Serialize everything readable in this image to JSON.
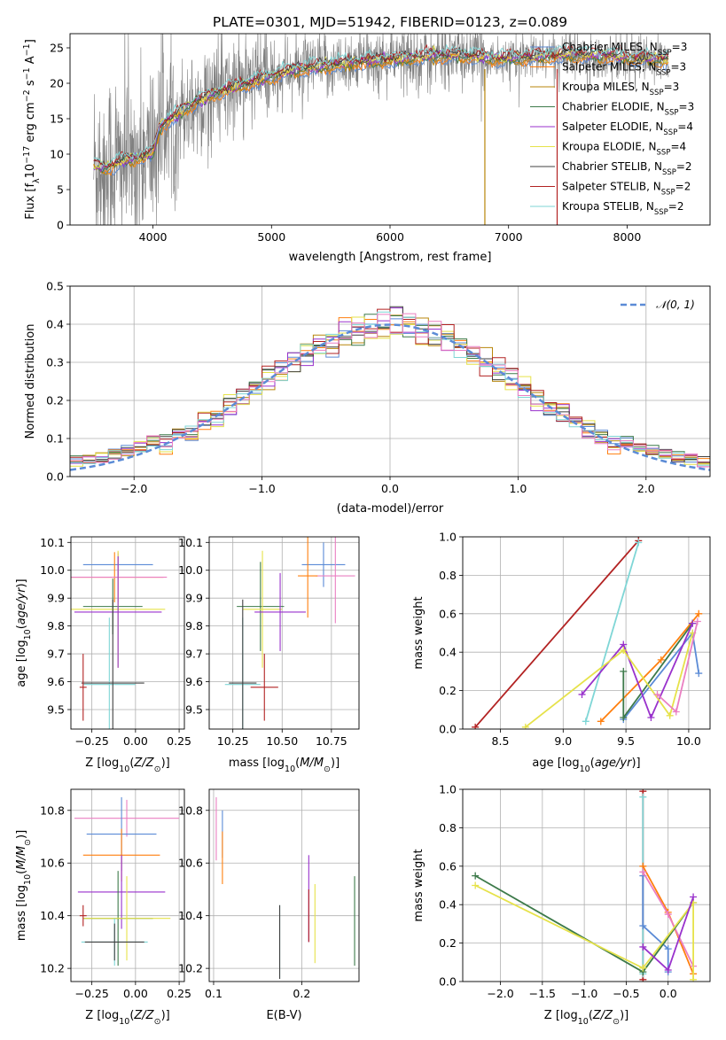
{
  "figure": {
    "title": "PLATE=0301, MJD=51942, FIBERID=0123, z=0.089"
  },
  "colors": {
    "Chabrier MILES": "#5b8bd6",
    "Salpeter MILES": "#ff7f0e",
    "Kroupa MILES": "#b8860b",
    "Chabrier ELODIE": "#3d7a4a",
    "Salpeter ELODIE": "#9932cc",
    "Kroupa ELODIE": "#e6e24a",
    "Chabrier STELIB": "#404040",
    "Salpeter STELIB": "#b22222",
    "Kroupa STELIB": "#7fd6d6",
    "pink": "#ea7fc2",
    "data": "#808080"
  },
  "chart_data": [
    {
      "id": "spectrum",
      "type": "line",
      "xlabel": "wavelength [Angstrom, rest frame]",
      "ylabel": "Flux [f_λ10^-17 erg cm^-2 s^-1 A^-1]",
      "xlim": [
        3300,
        8700
      ],
      "ylim": [
        0,
        27
      ],
      "xticks": [
        4000,
        5000,
        6000,
        7000,
        8000
      ],
      "yticks": [
        0,
        5,
        10,
        15,
        20,
        25
      ],
      "legend_position": "top-right",
      "legend": [
        {
          "name": "Chabrier MILES",
          "nssp": "3"
        },
        {
          "name": "Salpeter MILES",
          "nssp": "3"
        },
        {
          "name": "Kroupa MILES",
          "nssp": "3"
        },
        {
          "name": "Chabrier ELODIE",
          "nssp": "3"
        },
        {
          "name": "Salpeter ELODIE",
          "nssp": "4"
        },
        {
          "name": "Kroupa ELODIE",
          "nssp": "4"
        },
        {
          "name": "Chabrier STELIB",
          "nssp": "2"
        },
        {
          "name": "Salpeter STELIB",
          "nssp": "2"
        },
        {
          "name": "Kroupa STELIB",
          "nssp": "2"
        }
      ],
      "model_envelope": {
        "x": [
          3500,
          3600,
          3700,
          3800,
          3900,
          4000,
          4050,
          4100,
          4200,
          4300,
          4500,
          4700,
          4900,
          5100,
          5300,
          5500,
          5700,
          5900,
          6100,
          6300,
          6500,
          6700,
          6900,
          7100,
          7300,
          7500,
          7700,
          7900,
          8100,
          8300
        ],
        "y": [
          8.5,
          8.0,
          8.8,
          9.2,
          9.5,
          10.2,
          13.5,
          14.5,
          15.5,
          16.8,
          18.5,
          19.5,
          20.5,
          21.5,
          22.2,
          22.5,
          23.0,
          23.2,
          23.5,
          23.8,
          24.0,
          23.8,
          23.5,
          23.6,
          23.8,
          24.0,
          24.0,
          23.8,
          23.5,
          23.4
        ]
      },
      "spikes": [
        {
          "x": 6800,
          "color": "Kroupa MILES"
        },
        {
          "x": 7410,
          "color": "Salpeter STELIB"
        }
      ]
    },
    {
      "id": "residuals",
      "type": "histogram",
      "xlabel": "(data-model)/error",
      "ylabel": "Normed distribution",
      "xlim": [
        -2.5,
        2.5
      ],
      "ylim": [
        0,
        0.5
      ],
      "xticks": [
        -2,
        -1,
        0,
        1,
        2
      ],
      "yticks": [
        0.0,
        0.1,
        0.2,
        0.3,
        0.4,
        0.5
      ],
      "gaussian_label": "𝒩(0, 1)",
      "bin_width": 0.1
    },
    {
      "id": "age_vs_Z",
      "type": "errorbar",
      "xlabel": "Z [log10(Z/Z⊙)]",
      "ylabel": "age [log10(age/yr)]",
      "xlim": [
        -0.37,
        0.28
      ],
      "ylim": [
        9.43,
        10.12
      ],
      "xticks": [
        -0.25,
        0.0,
        0.25
      ],
      "yticks": [
        9.5,
        9.6,
        9.7,
        9.8,
        9.9,
        10.0,
        10.1
      ],
      "points": [
        {
          "color": "Chabrier MILES",
          "x": -0.1,
          "xerr": 0.2,
          "y": 10.02,
          "yerr": 0.04
        },
        {
          "color": "Salpeter MILES",
          "x": -0.12,
          "xerr": 0.28,
          "y": 9.975,
          "yerr": 0.09
        },
        {
          "color": "pink",
          "x": -0.1,
          "xerr": 0.28,
          "y": 9.975,
          "yerr": 0.09
        },
        {
          "color": "Chabrier ELODIE",
          "x": -0.13,
          "xerr": 0.17,
          "y": 9.87,
          "yerr": 0.1
        },
        {
          "color": "Kroupa ELODIE",
          "x": -0.1,
          "xerr": 0.27,
          "y": 9.86,
          "yerr": 0.21
        },
        {
          "color": "Salpeter ELODIE",
          "x": -0.1,
          "xerr": 0.25,
          "y": 9.85,
          "yerr": 0.2
        },
        {
          "color": "Kroupa STELIB",
          "x": -0.15,
          "xerr": 0.15,
          "y": 9.59,
          "yerr": 0.24
        },
        {
          "color": "Chabrier STELIB",
          "x": -0.13,
          "xerr": 0.18,
          "y": 9.595,
          "yerr": 0.3
        },
        {
          "color": "Salpeter STELIB",
          "x": -0.3,
          "xerr": 0.02,
          "y": 9.58,
          "yerr": 0.12
        }
      ]
    },
    {
      "id": "age_vs_mass",
      "type": "errorbar",
      "xlabel": "mass [log10(M/M⊙)]",
      "ylabel": "",
      "xlim": [
        10.13,
        10.89
      ],
      "ylim": [
        9.43,
        10.12
      ],
      "xticks": [
        10.25,
        10.5,
        10.75
      ],
      "yticks": [
        9.5,
        9.6,
        9.7,
        9.8,
        9.9,
        10.0,
        10.1
      ],
      "points": [
        {
          "color": "Chabrier MILES",
          "x": 10.71,
          "xerr": 0.11,
          "y": 10.02,
          "yerr": 0.08
        },
        {
          "color": "pink",
          "x": 10.77,
          "xerr": 0.1,
          "y": 9.98,
          "yerr": 0.17
        },
        {
          "color": "Salpeter MILES",
          "x": 10.63,
          "xerr": 0.05,
          "y": 9.98,
          "yerr": 0.15
        },
        {
          "color": "Chabrier ELODIE",
          "x": 10.39,
          "xerr": 0.12,
          "y": 9.87,
          "yerr": 0.16
        },
        {
          "color": "Kroupa ELODIE",
          "x": 10.4,
          "xerr": 0.1,
          "y": 9.86,
          "yerr": 0.21
        },
        {
          "color": "Salpeter ELODIE",
          "x": 10.49,
          "xerr": 0.13,
          "y": 9.85,
          "yerr": 0.14
        },
        {
          "color": "Kroupa STELIB",
          "x": 10.3,
          "xerr": 0.09,
          "y": 9.59,
          "yerr": 0.24
        },
        {
          "color": "Chabrier STELIB",
          "x": 10.3,
          "xerr": 0.07,
          "y": 9.595,
          "yerr": 0.3
        },
        {
          "color": "Salpeter STELIB",
          "x": 10.41,
          "xerr": 0.07,
          "y": 9.58,
          "yerr": 0.12
        }
      ]
    },
    {
      "id": "weight_vs_age",
      "type": "line",
      "xlabel": "age [log10(age/yr)]",
      "ylabel": "mass weight",
      "xlim": [
        8.2,
        10.17
      ],
      "ylim": [
        0,
        1
      ],
      "xticks": [
        8.5,
        9.0,
        9.5,
        10.0
      ],
      "yticks": [
        0.0,
        0.2,
        0.4,
        0.6,
        0.8,
        1.0
      ],
      "series": [
        {
          "color": "Salpeter STELIB",
          "x": [
            8.3,
            9.6
          ],
          "y": [
            0.01,
            0.98
          ]
        },
        {
          "color": "Kroupa STELIB",
          "x": [
            9.18,
            9.6
          ],
          "y": [
            0.04,
            0.97
          ]
        },
        {
          "color": "Salpeter MILES",
          "x": [
            9.3,
            9.78,
            10.08
          ],
          "y": [
            0.04,
            0.36,
            0.6
          ]
        },
        {
          "color": "Chabrier MILES",
          "x": [
            9.48,
            10.03,
            10.08
          ],
          "y": [
            0.05,
            0.5,
            0.29
          ]
        },
        {
          "color": "Chabrier ELODIE",
          "x": [
            9.48,
            9.48,
            10.03
          ],
          "y": [
            0.3,
            0.06,
            0.55
          ]
        },
        {
          "color": "Salpeter ELODIE",
          "x": [
            9.15,
            9.48,
            9.7,
            10.03
          ],
          "y": [
            0.18,
            0.44,
            0.06,
            0.55
          ]
        },
        {
          "color": "Kroupa ELODIE",
          "x": [
            8.7,
            9.48,
            9.85,
            10.03
          ],
          "y": [
            0.01,
            0.41,
            0.07,
            0.5
          ]
        },
        {
          "color": "pink",
          "x": [
            9.75,
            9.9,
            10.07
          ],
          "y": [
            0.18,
            0.09,
            0.56
          ]
        }
      ]
    },
    {
      "id": "mass_vs_Z",
      "type": "errorbar",
      "xlabel": "Z [log10(Z/Z⊙)]",
      "ylabel": "mass [log10(M/M⊙)]",
      "xlim": [
        -0.37,
        0.28
      ],
      "ylim": [
        10.15,
        10.88
      ],
      "xticks": [
        -0.25,
        0.0,
        0.25
      ],
      "yticks": [
        10.2,
        10.4,
        10.6,
        10.8
      ],
      "points": [
        {
          "color": "pink",
          "x": -0.05,
          "xerr": 0.3,
          "y": 10.77,
          "yerr": 0.07
        },
        {
          "color": "Chabrier MILES",
          "x": -0.08,
          "xerr": 0.2,
          "y": 10.71,
          "yerr": 0.14
        },
        {
          "color": "Salpeter MILES",
          "x": -0.08,
          "xerr": 0.22,
          "y": 10.63,
          "yerr": 0.1
        },
        {
          "color": "Salpeter ELODIE",
          "x": -0.08,
          "xerr": 0.25,
          "y": 10.49,
          "yerr": 0.14
        },
        {
          "color": "Chabrier ELODIE",
          "x": -0.1,
          "xerr": 0.2,
          "y": 10.39,
          "yerr": 0.18
        },
        {
          "color": "Kroupa ELODIE",
          "x": -0.05,
          "xerr": 0.25,
          "y": 10.39,
          "yerr": 0.16
        },
        {
          "color": "Kroupa STELIB",
          "x": -0.12,
          "xerr": 0.19,
          "y": 10.3,
          "yerr": 0.09
        },
        {
          "color": "Chabrier STELIB",
          "x": -0.12,
          "xerr": 0.17,
          "y": 10.3,
          "yerr": 0.07
        },
        {
          "color": "Salpeter STELIB",
          "x": -0.3,
          "xerr": 0.02,
          "y": 10.4,
          "yerr": 0.04
        }
      ]
    },
    {
      "id": "mass_vs_ebv",
      "type": "errorbar",
      "xlabel": "E(B-V)",
      "ylabel": "",
      "xlim": [
        0.095,
        0.265
      ],
      "ylim": [
        10.15,
        10.88
      ],
      "xticks": [
        0.1,
        0.2
      ],
      "yticks": [
        10.2,
        10.4,
        10.6,
        10.8
      ],
      "points": [
        {
          "color": "pink",
          "x": 0.103,
          "xerr": 0,
          "y": 10.73,
          "yerr": 0.12
        },
        {
          "color": "Chabrier MILES",
          "x": 0.11,
          "xerr": 0,
          "y": 10.71,
          "yerr": 0.09
        },
        {
          "color": "Salpeter MILES",
          "x": 0.11,
          "xerr": 0,
          "y": 10.62,
          "yerr": 0.1
        },
        {
          "color": "Chabrier ELODIE",
          "x": 0.26,
          "xerr": 0,
          "y": 10.38,
          "yerr": 0.17
        },
        {
          "color": "Kroupa ELODIE",
          "x": 0.215,
          "xerr": 0,
          "y": 10.37,
          "yerr": 0.15
        },
        {
          "color": "Salpeter ELODIE",
          "x": 0.208,
          "xerr": 0,
          "y": 10.465,
          "yerr": 0.165
        },
        {
          "color": "Kroupa STELIB",
          "x": 0.175,
          "xerr": 0,
          "y": 10.3,
          "yerr": 0.14
        },
        {
          "color": "Chabrier STELIB",
          "x": 0.175,
          "xerr": 0,
          "y": 10.3,
          "yerr": 0.14
        },
        {
          "color": "Salpeter STELIB",
          "x": 0.208,
          "xerr": 0,
          "y": 10.4,
          "yerr": 0.1
        }
      ]
    },
    {
      "id": "weight_vs_Z",
      "type": "line",
      "xlabel": "Z [log10(Z/Z⊙)]",
      "ylabel": "mass weight",
      "xlim": [
        -2.45,
        0.5
      ],
      "ylim": [
        0,
        1
      ],
      "xticks": [
        -2.0,
        -1.5,
        -1.0,
        -0.5,
        0.0
      ],
      "yticks": [
        0.0,
        0.2,
        0.4,
        0.6,
        0.8,
        1.0
      ],
      "series": [
        {
          "color": "Salpeter STELIB",
          "x": [
            -0.3,
            -0.3
          ],
          "y": [
            0.01,
            0.99
          ]
        },
        {
          "color": "Kroupa STELIB",
          "x": [
            -0.3,
            -0.3
          ],
          "y": [
            0.04,
            0.96
          ]
        },
        {
          "color": "Chabrier MILES",
          "x": [
            -0.3,
            -0.3,
            0.0,
            0.0
          ],
          "y": [
            0.55,
            0.29,
            0.17,
            0.05
          ]
        },
        {
          "color": "Salpeter MILES",
          "x": [
            -0.3,
            0.0,
            0.3
          ],
          "y": [
            0.6,
            0.36,
            0.04
          ]
        },
        {
          "color": "pink",
          "x": [
            -0.3,
            0.0,
            0.3
          ],
          "y": [
            0.57,
            0.35,
            0.08
          ]
        },
        {
          "color": "Chabrier ELODIE",
          "x": [
            -2.3,
            -0.3,
            0.3
          ],
          "y": [
            0.55,
            0.05,
            0.41
          ]
        },
        {
          "color": "Kroupa ELODIE",
          "x": [
            -2.3,
            -0.3,
            0.3,
            0.3
          ],
          "y": [
            0.5,
            0.07,
            0.41,
            0.01
          ]
        },
        {
          "color": "Salpeter ELODIE",
          "x": [
            -0.3,
            0.0,
            0.3
          ],
          "y": [
            0.18,
            0.06,
            0.44
          ]
        }
      ]
    }
  ]
}
